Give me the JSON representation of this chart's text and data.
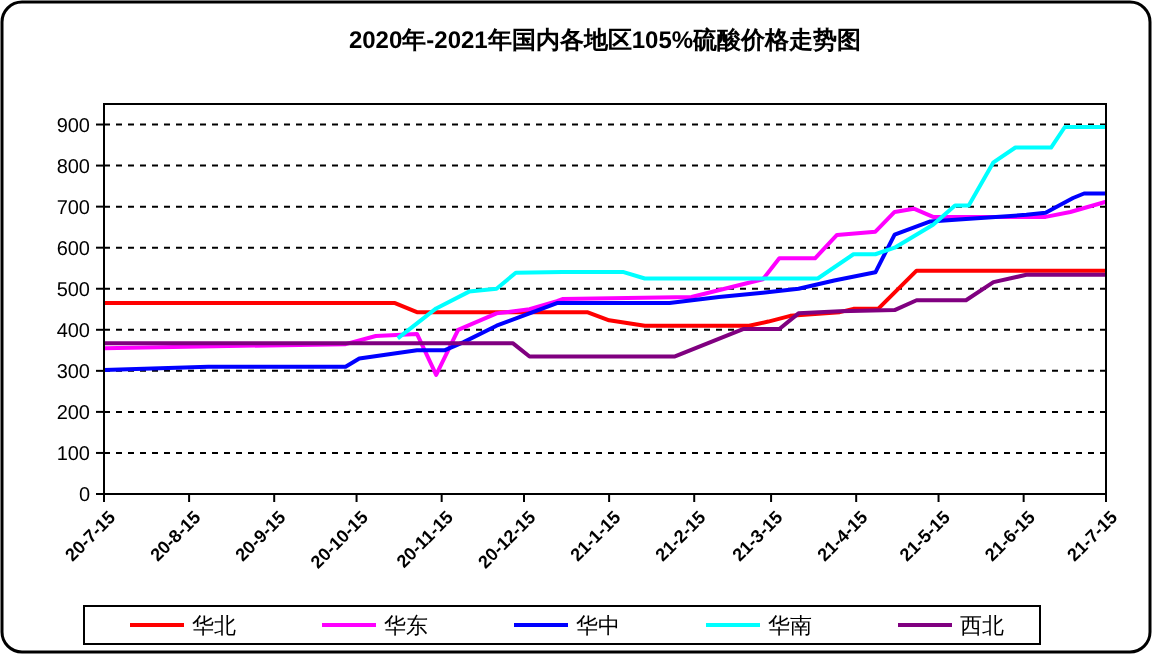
{
  "chart_data": {
    "type": "line",
    "title": "2020年-2021年国内各地区105%硫酸价格走势图",
    "xlim": [
      "2020-07-15",
      "2021-07-15"
    ],
    "xticks": [
      {
        "value": "2020-07-15",
        "label": "20-7-15"
      },
      {
        "value": "2020-08-15",
        "label": "20-8-15"
      },
      {
        "value": "2020-09-15",
        "label": "20-9-15"
      },
      {
        "value": "2020-10-15",
        "label": "20-10-15"
      },
      {
        "value": "2020-11-15",
        "label": "20-11-15"
      },
      {
        "value": "2020-12-15",
        "label": "20-12-15"
      },
      {
        "value": "2021-01-15",
        "label": "21-1-15"
      },
      {
        "value": "2021-02-15",
        "label": "21-2-15"
      },
      {
        "value": "2021-03-15",
        "label": "21-3-15"
      },
      {
        "value": "2021-04-15",
        "label": "21-4-15"
      },
      {
        "value": "2021-05-15",
        "label": "21-5-15"
      },
      {
        "value": "2021-06-15",
        "label": "21-6-15"
      },
      {
        "value": "2021-07-15",
        "label": "21-7-15"
      }
    ],
    "ylim": [
      0,
      950
    ],
    "yticks": [
      0,
      100,
      200,
      300,
      400,
      500,
      600,
      700,
      800,
      900
    ],
    "grid": "y",
    "legend": "bottom",
    "marker": "none",
    "line_style": "solid",
    "series": [
      {
        "name": "华北",
        "color": "#ff0000",
        "x": [
          "2020-07-15",
          "2020-10-29",
          "2020-11-06",
          "2021-01-07",
          "2021-01-15",
          "2021-01-28",
          "2021-03-07",
          "2021-03-14",
          "2021-03-22",
          "2021-04-09",
          "2021-04-14",
          "2021-04-23",
          "2021-05-07",
          "2021-07-15"
        ],
        "values": [
          465,
          465,
          443,
          443,
          423,
          410,
          410,
          420,
          434,
          443,
          451,
          451,
          544,
          544
        ]
      },
      {
        "name": "华东",
        "color": "#ff00ff",
        "x": [
          "2020-07-15",
          "2020-09-13",
          "2020-10-11",
          "2020-10-22",
          "2020-11-06",
          "2020-11-13",
          "2020-11-21",
          "2020-12-05",
          "2020-12-17",
          "2020-12-27",
          "2020-12-29",
          "2021-02-14",
          "2021-03-12",
          "2021-03-18",
          "2021-03-31",
          "2021-04-08",
          "2021-04-22",
          "2021-04-29",
          "2021-05-06",
          "2021-05-13",
          "2021-06-23",
          "2021-07-02",
          "2021-07-15"
        ],
        "values": [
          355,
          362,
          365,
          385,
          390,
          290,
          400,
          440,
          450,
          470,
          475,
          480,
          523,
          574,
          574,
          631,
          639,
          687,
          695,
          675,
          675,
          687,
          712
        ]
      },
      {
        "name": "华中",
        "color": "#0000ff",
        "x": [
          "2020-07-15",
          "2020-08-22",
          "2020-10-11",
          "2020-10-16",
          "2020-11-06",
          "2020-11-16",
          "2020-11-23",
          "2020-12-05",
          "2020-12-17",
          "2020-12-27",
          "2021-02-06",
          "2021-02-24",
          "2021-03-12",
          "2021-03-25",
          "2021-04-07",
          "2021-04-22",
          "2021-04-29",
          "2021-05-12",
          "2021-05-25",
          "2021-06-16",
          "2021-06-23",
          "2021-07-03",
          "2021-07-07",
          "2021-07-15"
        ],
        "values": [
          302,
          310,
          310,
          330,
          350,
          350,
          370,
          410,
          440,
          465,
          465,
          480,
          490,
          500,
          520,
          540,
          632,
          664,
          670,
          680,
          685,
          721,
          732,
          732
        ]
      },
      {
        "name": "华南",
        "color": "#00ffff",
        "x": [
          "2020-10-30",
          "2020-11-13",
          "2020-11-25",
          "2020-12-05",
          "2020-12-12",
          "2020-12-29",
          "2021-01-20",
          "2021-01-28",
          "2021-04-01",
          "2021-04-14",
          "2021-04-22",
          "2021-04-29",
          "2021-05-13",
          "2021-05-21",
          "2021-05-26",
          "2021-06-04",
          "2021-06-12",
          "2021-06-25",
          "2021-06-30",
          "2021-07-15"
        ],
        "values": [
          379,
          452,
          493,
          500,
          539,
          541,
          541,
          525,
          525,
          584,
          584,
          600,
          656,
          703,
          703,
          808,
          844,
          844,
          894,
          894
        ]
      },
      {
        "name": "西北",
        "color": "#800080",
        "x": [
          "2020-07-15",
          "2020-12-11",
          "2020-12-17",
          "2021-02-08",
          "2021-03-05",
          "2021-03-18",
          "2021-03-25",
          "2021-04-09",
          "2021-04-29",
          "2021-05-07",
          "2021-05-25",
          "2021-06-04",
          "2021-06-16",
          "2021-07-15"
        ],
        "values": [
          367,
          367,
          335,
          335,
          402,
          402,
          440,
          445,
          448,
          472,
          472,
          516,
          534,
          534
        ]
      }
    ]
  }
}
